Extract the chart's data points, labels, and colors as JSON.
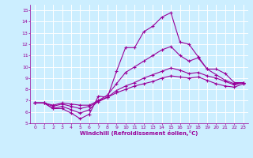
{
  "xlabel": "Windchill (Refroidissement éolien,°C)",
  "xlim": [
    -0.5,
    23.5
  ],
  "ylim": [
    5,
    15.5
  ],
  "xticks": [
    0,
    1,
    2,
    3,
    4,
    5,
    6,
    7,
    8,
    9,
    10,
    11,
    12,
    13,
    14,
    15,
    16,
    17,
    18,
    19,
    20,
    21,
    22,
    23
  ],
  "yticks": [
    5,
    6,
    7,
    8,
    9,
    10,
    11,
    12,
    13,
    14,
    15
  ],
  "bg_color": "#cceeff",
  "grid_color": "#ffffff",
  "line_color": "#990099",
  "lines": [
    {
      "x": [
        0,
        1,
        2,
        3,
        4,
        5,
        6,
        7,
        8,
        9,
        10,
        11,
        12,
        13,
        14,
        15,
        16,
        17,
        18,
        19,
        20,
        21,
        22,
        23
      ],
      "y": [
        6.8,
        6.8,
        6.3,
        6.3,
        5.9,
        5.4,
        5.8,
        7.4,
        7.3,
        9.6,
        11.7,
        11.7,
        13.1,
        13.6,
        14.4,
        14.8,
        12.2,
        12.0,
        10.9,
        9.8,
        9.8,
        9.4,
        8.6,
        8.6
      ]
    },
    {
      "x": [
        0,
        1,
        2,
        3,
        4,
        5,
        6,
        7,
        8,
        9,
        10,
        11,
        12,
        13,
        14,
        15,
        16,
        17,
        18,
        19,
        20,
        21,
        22,
        23
      ],
      "y": [
        6.8,
        6.8,
        6.3,
        6.5,
        6.2,
        5.9,
        6.2,
        7.0,
        7.5,
        8.5,
        9.5,
        10.0,
        10.5,
        11.0,
        11.5,
        11.8,
        11.0,
        10.5,
        10.8,
        9.8,
        9.3,
        8.8,
        8.5,
        8.6
      ]
    },
    {
      "x": [
        0,
        1,
        2,
        3,
        4,
        5,
        6,
        7,
        8,
        9,
        10,
        11,
        12,
        13,
        14,
        15,
        16,
        17,
        18,
        19,
        20,
        21,
        22,
        23
      ],
      "y": [
        6.8,
        6.8,
        6.5,
        6.7,
        6.5,
        6.3,
        6.5,
        6.9,
        7.3,
        7.9,
        8.3,
        8.6,
        9.0,
        9.3,
        9.6,
        9.9,
        9.7,
        9.4,
        9.5,
        9.2,
        9.0,
        8.7,
        8.4,
        8.6
      ]
    },
    {
      "x": [
        0,
        1,
        2,
        3,
        4,
        5,
        6,
        7,
        8,
        9,
        10,
        11,
        12,
        13,
        14,
        15,
        16,
        17,
        18,
        19,
        20,
        21,
        22,
        23
      ],
      "y": [
        6.8,
        6.8,
        6.6,
        6.8,
        6.7,
        6.6,
        6.6,
        7.0,
        7.3,
        7.7,
        8.0,
        8.3,
        8.5,
        8.7,
        9.0,
        9.2,
        9.1,
        9.0,
        9.1,
        8.8,
        8.5,
        8.3,
        8.2,
        8.5
      ]
    }
  ]
}
